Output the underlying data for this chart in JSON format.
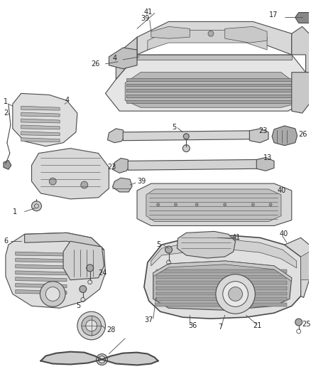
{
  "bg_color": "#ffffff",
  "line_color": "#4a4a4a",
  "label_color": "#222222",
  "fig_w": 4.39,
  "fig_h": 5.33,
  "dpi": 100
}
